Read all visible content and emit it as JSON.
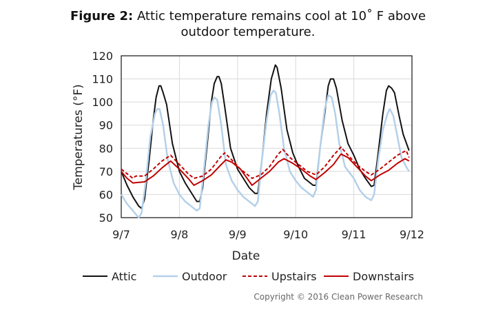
{
  "title": {
    "prefix": "Figure 2:",
    "text": "Attic temperature remains cool at 10˚ F above",
    "line2": "outdoor temperature."
  },
  "copyright": "Copyright © 2016 Clean Power Research",
  "chart_data": {
    "type": "line",
    "xlabel": "Date",
    "ylabel": "Temperatures (°F)",
    "xticks": [
      "9/7",
      "9/8",
      "9/9",
      "9/10",
      "9/11",
      "9/12"
    ],
    "xlim": [
      0,
      5
    ],
    "ylim": [
      50,
      120
    ],
    "yticks": [
      50,
      60,
      70,
      80,
      90,
      100,
      110,
      120
    ],
    "grid": true,
    "legend": "bottom",
    "x_units": "days since 9/7",
    "series": [
      {
        "name": "Attic",
        "color": "#111111",
        "dash": "solid",
        "points": [
          [
            0,
            70
          ],
          [
            0.1,
            64
          ],
          [
            0.2,
            59
          ],
          [
            0.3,
            55
          ],
          [
            0.35,
            54
          ],
          [
            0.4,
            58
          ],
          [
            0.48,
            75
          ],
          [
            0.55,
            92
          ],
          [
            0.6,
            102
          ],
          [
            0.65,
            107
          ],
          [
            0.68,
            107
          ],
          [
            0.72,
            104
          ],
          [
            0.78,
            99
          ],
          [
            0.88,
            82
          ],
          [
            1.0,
            70
          ],
          [
            1.1,
            65
          ],
          [
            1.2,
            61
          ],
          [
            1.3,
            57
          ],
          [
            1.35,
            57
          ],
          [
            1.4,
            63
          ],
          [
            1.48,
            82
          ],
          [
            1.55,
            100
          ],
          [
            1.6,
            108
          ],
          [
            1.65,
            111
          ],
          [
            1.68,
            111
          ],
          [
            1.72,
            108
          ],
          [
            1.78,
            98
          ],
          [
            1.88,
            80
          ],
          [
            2.0,
            71
          ],
          [
            2.1,
            67
          ],
          [
            2.2,
            63
          ],
          [
            2.3,
            60.5
          ],
          [
            2.35,
            60.5
          ],
          [
            2.42,
            75
          ],
          [
            2.5,
            95
          ],
          [
            2.58,
            110
          ],
          [
            2.65,
            116
          ],
          [
            2.68,
            115
          ],
          [
            2.75,
            106
          ],
          [
            2.85,
            88
          ],
          [
            2.95,
            78
          ],
          [
            3.05,
            72
          ],
          [
            3.15,
            67
          ],
          [
            3.3,
            64
          ],
          [
            3.35,
            64
          ],
          [
            3.42,
            80
          ],
          [
            3.5,
            95
          ],
          [
            3.56,
            107
          ],
          [
            3.6,
            110
          ],
          [
            3.65,
            110
          ],
          [
            3.7,
            106
          ],
          [
            3.8,
            92
          ],
          [
            3.9,
            82
          ],
          [
            4.0,
            77
          ],
          [
            4.1,
            71
          ],
          [
            4.2,
            67
          ],
          [
            4.3,
            63.5
          ],
          [
            4.35,
            64
          ],
          [
            4.42,
            78
          ],
          [
            4.5,
            95
          ],
          [
            4.56,
            105
          ],
          [
            4.6,
            107
          ],
          [
            4.65,
            106
          ],
          [
            4.7,
            104
          ],
          [
            4.78,
            94
          ],
          [
            4.85,
            86
          ],
          [
            4.95,
            79
          ]
        ]
      },
      {
        "name": "Outdoor",
        "color": "#b4d0ea",
        "dash": "solid",
        "points": [
          [
            0,
            60
          ],
          [
            0.1,
            56
          ],
          [
            0.2,
            53
          ],
          [
            0.3,
            50
          ],
          [
            0.35,
            52
          ],
          [
            0.42,
            65
          ],
          [
            0.5,
            85
          ],
          [
            0.58,
            95
          ],
          [
            0.62,
            97
          ],
          [
            0.66,
            97
          ],
          [
            0.72,
            90
          ],
          [
            0.8,
            75
          ],
          [
            0.9,
            65
          ],
          [
            1.0,
            60
          ],
          [
            1.1,
            57
          ],
          [
            1.2,
            55
          ],
          [
            1.3,
            53
          ],
          [
            1.35,
            54
          ],
          [
            1.42,
            70
          ],
          [
            1.5,
            90
          ],
          [
            1.56,
            100
          ],
          [
            1.6,
            102
          ],
          [
            1.65,
            101
          ],
          [
            1.72,
            90
          ],
          [
            1.8,
            73
          ],
          [
            1.9,
            66
          ],
          [
            2.0,
            62
          ],
          [
            2.1,
            59
          ],
          [
            2.2,
            57
          ],
          [
            2.3,
            55
          ],
          [
            2.35,
            57
          ],
          [
            2.42,
            75
          ],
          [
            2.5,
            92
          ],
          [
            2.57,
            103
          ],
          [
            2.62,
            105
          ],
          [
            2.66,
            104
          ],
          [
            2.72,
            95
          ],
          [
            2.8,
            80
          ],
          [
            2.9,
            70
          ],
          [
            3.0,
            66
          ],
          [
            3.1,
            63
          ],
          [
            3.2,
            61
          ],
          [
            3.3,
            59
          ],
          [
            3.35,
            62
          ],
          [
            3.42,
            80
          ],
          [
            3.5,
            97
          ],
          [
            3.56,
            103
          ],
          [
            3.62,
            102
          ],
          [
            3.68,
            95
          ],
          [
            3.75,
            82
          ],
          [
            3.85,
            72
          ],
          [
            4.0,
            67
          ],
          [
            4.1,
            62
          ],
          [
            4.2,
            59
          ],
          [
            4.3,
            57.5
          ],
          [
            4.35,
            60
          ],
          [
            4.42,
            75
          ],
          [
            4.5,
            88
          ],
          [
            4.58,
            95
          ],
          [
            4.62,
            97
          ],
          [
            4.68,
            94
          ],
          [
            4.75,
            85
          ],
          [
            4.82,
            76
          ],
          [
            4.9,
            72
          ],
          [
            4.95,
            70
          ]
        ]
      },
      {
        "name": "Upstairs",
        "color": "#c00000",
        "dash": "dashed",
        "points": [
          [
            0,
            71
          ],
          [
            0.1,
            69
          ],
          [
            0.2,
            67
          ],
          [
            0.25,
            68
          ],
          [
            0.4,
            68
          ],
          [
            0.55,
            71
          ],
          [
            0.7,
            74.5
          ],
          [
            0.85,
            77
          ],
          [
            1.0,
            73
          ],
          [
            1.15,
            69
          ],
          [
            1.25,
            67
          ],
          [
            1.4,
            68
          ],
          [
            1.55,
            71
          ],
          [
            1.7,
            76
          ],
          [
            1.78,
            78
          ],
          [
            1.9,
            75
          ],
          [
            2.05,
            71
          ],
          [
            2.25,
            67
          ],
          [
            2.4,
            68.5
          ],
          [
            2.55,
            72
          ],
          [
            2.7,
            77.5
          ],
          [
            2.78,
            79.5
          ],
          [
            2.9,
            76
          ],
          [
            3.05,
            73
          ],
          [
            3.2,
            70
          ],
          [
            3.35,
            68.5
          ],
          [
            3.5,
            72
          ],
          [
            3.65,
            77
          ],
          [
            3.78,
            80.5
          ],
          [
            3.9,
            77
          ],
          [
            4.05,
            73
          ],
          [
            4.2,
            70
          ],
          [
            4.3,
            68.5
          ],
          [
            4.45,
            71
          ],
          [
            4.6,
            74
          ],
          [
            4.75,
            77
          ],
          [
            4.9,
            79
          ],
          [
            4.95,
            76
          ]
        ]
      },
      {
        "name": "Downstairs",
        "color": "#c00000",
        "dash": "solid",
        "points": [
          [
            0,
            70
          ],
          [
            0.1,
            67
          ],
          [
            0.2,
            65
          ],
          [
            0.4,
            65.5
          ],
          [
            0.55,
            68
          ],
          [
            0.7,
            71.5
          ],
          [
            0.85,
            74.5
          ],
          [
            1.0,
            71
          ],
          [
            1.15,
            67
          ],
          [
            1.25,
            64
          ],
          [
            1.4,
            66
          ],
          [
            1.55,
            68.5
          ],
          [
            1.7,
            72.5
          ],
          [
            1.8,
            75
          ],
          [
            1.9,
            74
          ],
          [
            2.05,
            71
          ],
          [
            2.25,
            64
          ],
          [
            2.4,
            67
          ],
          [
            2.55,
            70
          ],
          [
            2.7,
            74
          ],
          [
            2.8,
            75.5
          ],
          [
            2.95,
            73.5
          ],
          [
            3.1,
            71
          ],
          [
            3.25,
            68
          ],
          [
            3.35,
            66.5
          ],
          [
            3.5,
            69.5
          ],
          [
            3.65,
            73
          ],
          [
            3.78,
            77.5
          ],
          [
            3.9,
            76
          ],
          [
            4.05,
            72
          ],
          [
            4.2,
            68
          ],
          [
            4.3,
            66
          ],
          [
            4.45,
            68.5
          ],
          [
            4.6,
            70.5
          ],
          [
            4.75,
            73.5
          ],
          [
            4.88,
            75.5
          ],
          [
            4.95,
            74.5
          ]
        ]
      }
    ]
  }
}
